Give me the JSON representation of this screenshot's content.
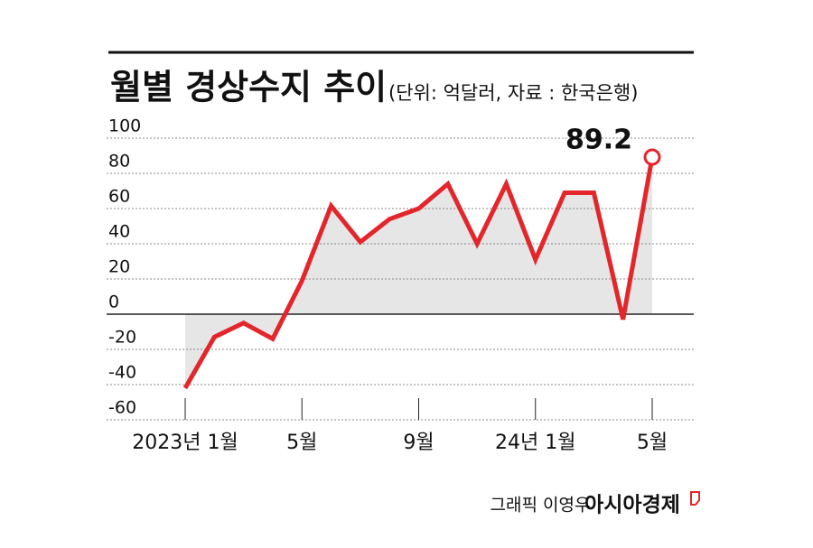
{
  "chart_data": {
    "type": "line",
    "title": "월별 경상수지 추이",
    "subtitle": "(단위: 억달러, 자료 : 한국은행)",
    "categories": [
      "2023년 1월",
      null,
      null,
      null,
      "5월",
      null,
      null,
      null,
      "9월",
      null,
      null,
      null,
      "24년 1월",
      null,
      null,
      null,
      "5월"
    ],
    "values": [
      -42,
      -13,
      -5,
      -14,
      19,
      61.5,
      41,
      54,
      60,
      74,
      40,
      74,
      31,
      69,
      69,
      -3,
      89.2
    ],
    "color": "#e3262b",
    "ylim": [
      -60,
      100
    ],
    "yticks": [
      -60,
      -40,
      -20,
      0,
      20,
      40,
      60,
      80,
      100
    ],
    "grid": true,
    "credit": "그래픽 이영우",
    "publisher": "아시아경제"
  }
}
